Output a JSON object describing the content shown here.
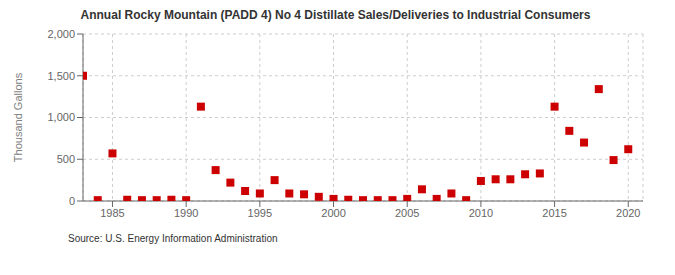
{
  "chart_data": {
    "type": "scatter",
    "title": "Annual Rocky Mountain (PADD 4) No 4 Distillate Sales/Deliveries to Industrial Consumers",
    "ylabel": "Thousand Gallons",
    "annotations": [
      "Source: U.S. Energy Information Administration"
    ],
    "x": [
      1983,
      1984,
      1985,
      1986,
      1987,
      1988,
      1989,
      1990,
      1991,
      1992,
      1993,
      1994,
      1995,
      1996,
      1997,
      1998,
      1999,
      2000,
      2001,
      2002,
      2003,
      2004,
      2005,
      2006,
      2007,
      2008,
      2009,
      2010,
      2011,
      2012,
      2013,
      2014,
      2015,
      2016,
      2017,
      2018,
      2019,
      2020
    ],
    "values": [
      1500,
      10,
      570,
      15,
      10,
      10,
      15,
      10,
      1130,
      370,
      220,
      120,
      90,
      250,
      90,
      80,
      50,
      25,
      15,
      10,
      10,
      10,
      25,
      140,
      25,
      90,
      10,
      240,
      260,
      260,
      320,
      330,
      1130,
      840,
      700,
      1340,
      490,
      620
    ],
    "color": "#cc0000",
    "marker": "square",
    "xlim": [
      1983,
      2021
    ],
    "ylim": [
      0,
      2000
    ],
    "xticks": [
      1985,
      1990,
      1995,
      2000,
      2005,
      2010,
      2015,
      2020
    ],
    "yticks": [
      0,
      500,
      {
        "value": 1000,
        "label": "1,000"
      },
      {
        "value": 1500,
        "label": "1,500"
      },
      {
        "value": 2000,
        "label": "2,000"
      }
    ],
    "grid": true
  }
}
